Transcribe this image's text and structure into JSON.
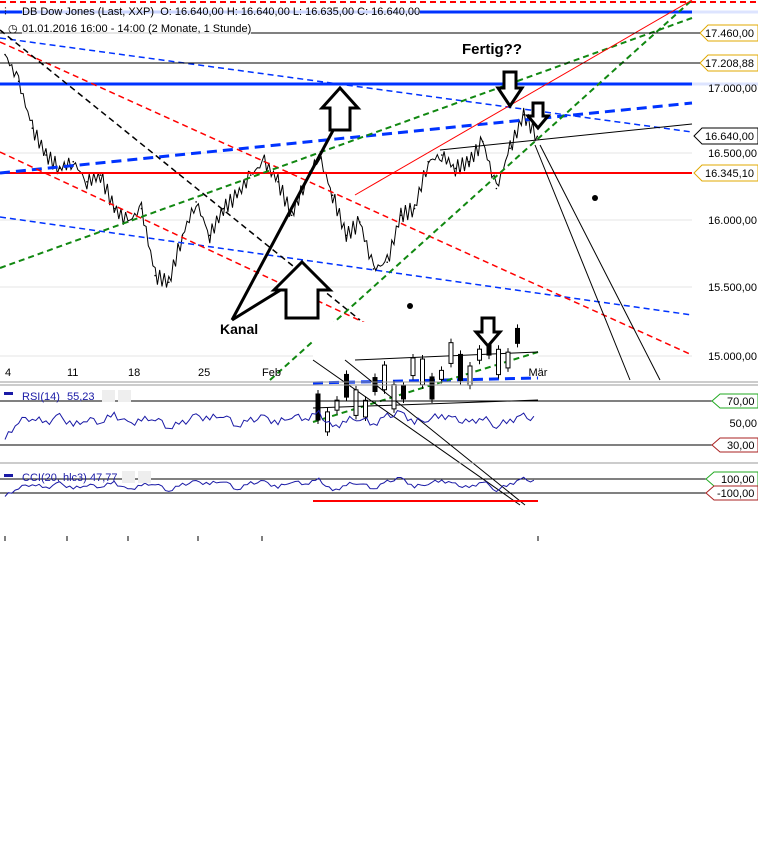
{
  "header": {
    "title": "DB Dow Jones (Last, XXP)",
    "ohlc": "O: 16.640,00  H: 16.640,00  L: 16.635,00  C: 16.640,00",
    "period": "01.01.2016 16:00 - 14:00 (2 Monate, 1 Stunde)"
  },
  "annotations": {
    "fertig": "Fertig??",
    "kanal": "Kanal"
  },
  "colors": {
    "price": "#000000",
    "indicator": "#1a1aa6",
    "support": "#ff0000",
    "trend_blue": "#0033ff",
    "trend_green": "#118811",
    "label_gold": "#e0a800"
  },
  "chart_data": [
    {
      "type": "line",
      "title": "DB Dow Jones (Last, XXP)",
      "xlabel": "",
      "ylabel": "",
      "x_ticks": [
        "4",
        "11",
        "18",
        "25",
        "Feb",
        "Mär"
      ],
      "y_ticks": [
        "17.000,00",
        "16.500,00",
        "16.000,00",
        "15.500,00",
        "15.000,00"
      ],
      "ylim": [
        14850,
        17700
      ],
      "price_labels": [
        "17.460,00",
        "17.208,88",
        "16.640,00",
        "16.345,10"
      ],
      "values": [
        17250,
        17050,
        16700,
        16500,
        16400,
        16450,
        16300,
        16350,
        16100,
        16000,
        16100,
        15600,
        15550,
        15900,
        16150,
        15900,
        16100,
        16200,
        16350,
        16450,
        16300,
        16050,
        16300,
        16500,
        16200,
        15900,
        16000,
        15650,
        15700,
        16050,
        16100,
        16450,
        16500,
        16400,
        16450,
        16600,
        16250,
        16550,
        16800,
        16640
      ]
    },
    {
      "type": "line",
      "title": "RSI(14)",
      "last": "55,23",
      "ylim": [
        0,
        100
      ],
      "levels": [
        "70,00",
        "50,00",
        "30,00"
      ],
      "values": [
        20,
        55,
        60,
        50,
        62,
        45,
        58,
        52,
        65,
        48,
        55,
        60,
        42,
        50,
        62,
        58,
        66,
        45,
        55,
        60,
        50,
        64,
        58,
        67,
        40,
        55,
        60,
        48,
        62,
        68,
        52,
        58,
        64,
        56,
        50,
        60,
        45,
        55,
        62,
        55
      ]
    },
    {
      "type": "line",
      "title": "CCI(20, hlc3)",
      "last": "47,77",
      "levels": [
        "100,00",
        "-100,00"
      ],
      "values": [
        -150,
        -20,
        30,
        -30,
        40,
        -40,
        20,
        -10,
        50,
        -60,
        10,
        40,
        -70,
        20,
        60,
        30,
        80,
        -50,
        40,
        60,
        -20,
        70,
        30,
        90,
        -80,
        20,
        50,
        -40,
        60,
        110,
        -10,
        40,
        80,
        20,
        -30,
        70,
        -60,
        30,
        100,
        48
      ]
    }
  ]
}
